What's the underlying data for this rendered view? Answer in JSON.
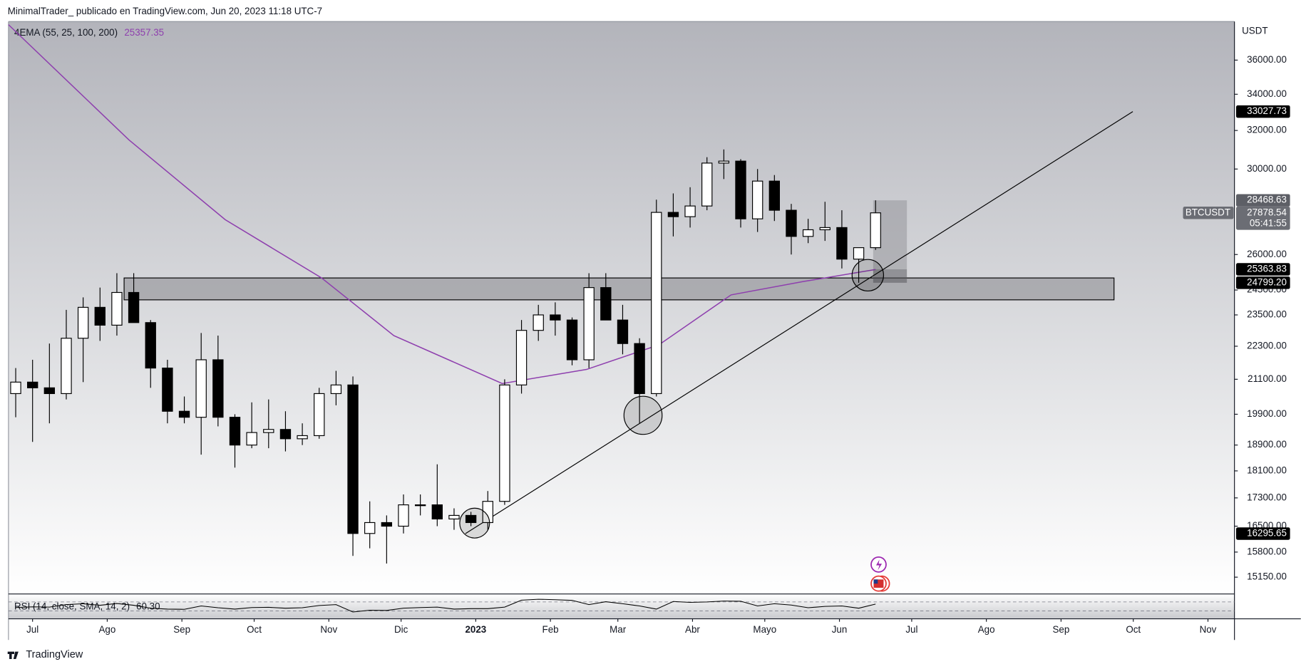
{
  "header": {
    "author_line": "MinimalTrader_  publicado en TradingView.com, Jun 20, 2023 11:18 UTC-7",
    "brand": "TradingView"
  },
  "chart_data": {
    "type": "candlestick",
    "symbol": "BTCUSDT",
    "currency": "USDT",
    "countdown": "05:41:55",
    "log_scale": true,
    "up_color": "#ffffff",
    "down_color": "#000000",
    "x": [
      -7,
      0,
      7,
      14,
      21,
      28,
      35,
      42,
      49,
      56,
      63,
      70,
      77,
      84,
      91,
      98,
      105,
      112,
      119,
      126,
      133,
      140,
      147,
      154,
      161,
      168,
      175,
      182,
      189,
      196,
      203,
      210,
      217,
      224,
      231,
      238,
      245,
      252,
      259,
      266,
      273,
      280,
      287,
      294,
      301,
      308,
      315,
      322,
      329,
      336,
      343,
      350
    ],
    "open": [
      20600,
      21000,
      20800,
      20600,
      22600,
      23800,
      23100,
      24400,
      23200,
      21500,
      20000,
      19800,
      21800,
      19800,
      18900,
      19300,
      19400,
      19100,
      19200,
      20600,
      20900,
      16300,
      16600,
      16500,
      17100,
      17100,
      16700,
      16800,
      16600,
      17200,
      20900,
      22900,
      23500,
      23300,
      21800,
      24600,
      23300,
      22400,
      20600,
      27900,
      27700,
      28200,
      30300,
      30400,
      27600,
      29400,
      28000,
      26800,
      27100,
      27200,
      25800,
      26300
    ],
    "high": [
      21500,
      21800,
      22400,
      23700,
      24200,
      24600,
      25200,
      25200,
      23300,
      21800,
      20500,
      22800,
      22700,
      19900,
      20300,
      20400,
      20000,
      19600,
      20800,
      21400,
      21200,
      17200,
      16800,
      17400,
      17400,
      18300,
      17000,
      16900,
      17500,
      21100,
      23300,
      23900,
      24000,
      23400,
      25200,
      25200,
      23900,
      22600,
      28500,
      28800,
      29100,
      30600,
      31000,
      30500,
      30000,
      29700,
      28300,
      27600,
      28400,
      28000,
      26200,
      28468.63
    ],
    "low": [
      19800,
      19000,
      19600,
      20400,
      21000,
      22500,
      22700,
      23200,
      20800,
      19600,
      19600,
      18600,
      19500,
      18200,
      18800,
      18800,
      18700,
      18900,
      19100,
      20200,
      15700,
      15900,
      15500,
      16300,
      16800,
      16500,
      16400,
      16500,
      16400,
      17100,
      20600,
      22500,
      22700,
      21600,
      21500,
      23400,
      22000,
      19600,
      20500,
      26800,
      27200,
      28000,
      29500,
      27200,
      27000,
      27500,
      26000,
      26500,
      26600,
      25400,
      24800,
      26200
    ],
    "close": [
      21000,
      20800,
      20600,
      22600,
      23800,
      23100,
      24400,
      23200,
      21500,
      20000,
      19800,
      21800,
      19800,
      18900,
      19300,
      19400,
      19100,
      19200,
      20600,
      20900,
      16300,
      16600,
      16500,
      17100,
      17100,
      16700,
      16800,
      16600,
      17200,
      20900,
      22900,
      23500,
      23300,
      21800,
      24600,
      23300,
      22400,
      20600,
      27900,
      27700,
      28200,
      30300,
      30400,
      27600,
      29400,
      28000,
      26800,
      27100,
      27200,
      25800,
      26300,
      27878.54
    ],
    "xlim": [
      -10,
      499
    ],
    "xticks": [
      {
        "value": 0,
        "label": "Jul"
      },
      {
        "value": 31,
        "label": "Ago"
      },
      {
        "value": 62,
        "label": "Sep"
      },
      {
        "value": 92,
        "label": "Oct"
      },
      {
        "value": 123,
        "label": "Nov"
      },
      {
        "value": 153,
        "label": "Dic"
      },
      {
        "value": 184,
        "label": "2023"
      },
      {
        "value": 215,
        "label": "Feb"
      },
      {
        "value": 243,
        "label": "Mar"
      },
      {
        "value": 274,
        "label": "Abr"
      },
      {
        "value": 304,
        "label": "Mayo"
      },
      {
        "value": 335,
        "label": "Jun"
      },
      {
        "value": 365,
        "label": "Jul"
      },
      {
        "value": 396,
        "label": "Ago"
      },
      {
        "value": 427,
        "label": "Sep"
      },
      {
        "value": 457,
        "label": "Oct"
      },
      {
        "value": 488,
        "label": "Nov"
      }
    ],
    "ylim": [
      14740,
      38400
    ],
    "yticks": [
      {
        "value": 36000,
        "label": "36000.00"
      },
      {
        "value": 34000,
        "label": "34000.00"
      },
      {
        "value": 32000,
        "label": "32000.00"
      },
      {
        "value": 30000,
        "label": "30000.00"
      },
      {
        "value": 26000,
        "label": "26000.00"
      },
      {
        "value": 24500,
        "label": "24500.00"
      },
      {
        "value": 23500,
        "label": "23500.00"
      },
      {
        "value": 22300,
        "label": "22300.00"
      },
      {
        "value": 21100,
        "label": "21100.00"
      },
      {
        "value": 19900,
        "label": "19900.00"
      },
      {
        "value": 18900,
        "label": "18900.00"
      },
      {
        "value": 18100,
        "label": "18100.00"
      },
      {
        "value": 17300,
        "label": "17300.00"
      },
      {
        "value": 16500,
        "label": "16500.00"
      },
      {
        "value": 15800,
        "label": "15800.00"
      },
      {
        "value": 15150,
        "label": "15150.00"
      }
    ],
    "ema": {
      "label": "4EMA (55, 25, 100, 200)",
      "color": "#8e3fae",
      "last": 25357.35,
      "x": [
        -10,
        40,
        80,
        120,
        150,
        195,
        230,
        260,
        290,
        320,
        350
      ],
      "values": [
        38200,
        31500,
        27560,
        25000,
        22700,
        20950,
        21450,
        22350,
        24300,
        24850,
        25357.35
      ]
    },
    "rsi": {
      "label": "RSI (14, close, SMA, 14, 2)",
      "color": "#000000",
      "last": {
        "value": 60.3,
        "label": "60.30"
      },
      "ylim": [
        0,
        100
      ],
      "bands": [
        70,
        30
      ],
      "values": [
        45,
        48,
        47,
        58,
        62,
        55,
        63,
        55,
        42,
        38,
        37,
        52,
        44,
        38,
        45,
        46,
        42,
        44,
        54,
        58,
        25,
        33,
        32,
        42,
        45,
        47,
        38,
        40,
        40,
        47,
        78,
        82,
        80,
        77,
        58,
        71,
        62,
        52,
        38,
        72,
        68,
        70,
        74,
        73,
        52,
        62,
        56,
        44,
        50,
        52,
        42,
        60.3
      ]
    },
    "trendline": {
      "x": [
        179.7,
        456.8
      ],
      "y": [
        16295.65,
        33027.73
      ]
    },
    "zone": {
      "x": [
        38,
        449
      ],
      "y": [
        24100,
        25000
      ]
    },
    "position": {
      "x": [
        349,
        363
      ],
      "target": 28468.63,
      "entry": 25363.83,
      "stop": {
        "value": 24799.2,
        "label": "24799.20"
      }
    }
  }
}
